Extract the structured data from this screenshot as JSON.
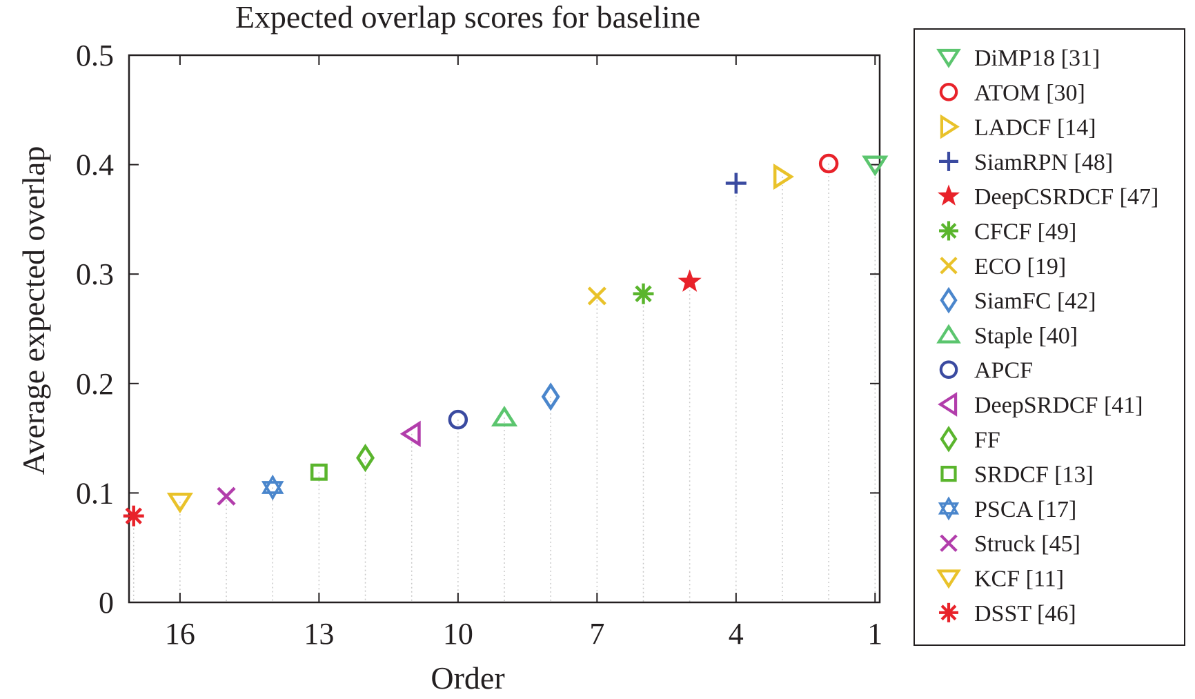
{
  "chart_data": {
    "type": "scatter",
    "title": "Expected overlap scores for baseline",
    "xlabel": "Order",
    "ylabel": "Average expected overlap",
    "x_reversed": true,
    "xlim": [
      17.1,
      0.9
    ],
    "ylim": [
      0,
      0.5
    ],
    "xticks": [
      16,
      13,
      10,
      7,
      4,
      1
    ],
    "yticks": [
      0,
      0.1,
      0.2,
      0.3,
      0.4,
      0.5
    ],
    "ytick_labels": [
      "0",
      "0.1",
      "0.2",
      "0.3",
      "0.4",
      "0.5"
    ],
    "grid": "vertical dotted drop lines",
    "legend_position": "outside-right",
    "series": [
      {
        "name": "DiMP18 [31]",
        "order": 1,
        "value": 0.4,
        "marker": "triangle-down",
        "color": "#5bc56e"
      },
      {
        "name": "ATOM [30]",
        "order": 2,
        "value": 0.401,
        "marker": "circle",
        "color": "#e8222a"
      },
      {
        "name": "LADCF [14]",
        "order": 3,
        "value": 0.389,
        "marker": "triangle-right",
        "color": "#e9c22a"
      },
      {
        "name": "SiamRPN [48]",
        "order": 4,
        "value": 0.383,
        "marker": "plus",
        "color": "#3a4aa0"
      },
      {
        "name": "DeepCSRDCF [47]",
        "order": 5,
        "value": 0.293,
        "marker": "star",
        "color": "#e8222a"
      },
      {
        "name": "CFCF [49]",
        "order": 6,
        "value": 0.282,
        "marker": "asterisk",
        "color": "#5ab52d"
      },
      {
        "name": "ECO [19]",
        "order": 7,
        "value": 0.28,
        "marker": "x",
        "color": "#e9c22a"
      },
      {
        "name": "SiamFC [42]",
        "order": 8,
        "value": 0.188,
        "marker": "diamond",
        "color": "#4a86cc"
      },
      {
        "name": "Staple [40]",
        "order": 9,
        "value": 0.169,
        "marker": "triangle-up",
        "color": "#5bc56e"
      },
      {
        "name": "APCF",
        "order": 10,
        "value": 0.167,
        "marker": "circle",
        "color": "#3a4aa0"
      },
      {
        "name": "DeepSRDCF [41]",
        "order": 11,
        "value": 0.154,
        "marker": "triangle-left",
        "color": "#b23dab"
      },
      {
        "name": "FF",
        "order": 12,
        "value": 0.132,
        "marker": "diamond",
        "color": "#5ab52d"
      },
      {
        "name": "SRDCF [13]",
        "order": 13,
        "value": 0.119,
        "marker": "square",
        "color": "#5ab52d"
      },
      {
        "name": "PSCA [17]",
        "order": 14,
        "value": 0.105,
        "marker": "hexagram",
        "color": "#4a86cc"
      },
      {
        "name": "Struck [45]",
        "order": 15,
        "value": 0.097,
        "marker": "x",
        "color": "#b23dab"
      },
      {
        "name": "KCF [11]",
        "order": 16,
        "value": 0.092,
        "marker": "triangle-down",
        "color": "#e9c22a"
      },
      {
        "name": "DSST [46]",
        "order": 17,
        "value": 0.079,
        "marker": "asterisk",
        "color": "#e8222a"
      }
    ]
  }
}
